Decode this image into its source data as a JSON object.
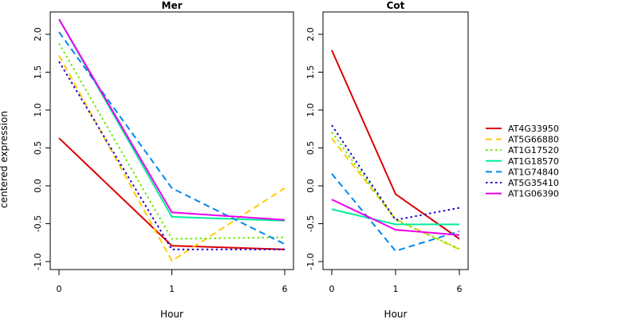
{
  "chart_data": {
    "type": "line",
    "ylabel": "centered expression",
    "xlabel": "Hour",
    "x_ticks": [
      "0",
      "1",
      "6"
    ],
    "ylim": [
      -1.0,
      2.2
    ],
    "y_ticks": [
      "-1.0",
      "-0.5",
      "0.0",
      "0.5",
      "1.0",
      "1.5",
      "2.0"
    ],
    "legend_position": "right",
    "series_styles": [
      {
        "name": "AT4G33950",
        "color": "#dd0000",
        "dash": "solid"
      },
      {
        "name": "AT5G66880",
        "color": "#ffcc00",
        "dash": "dashed"
      },
      {
        "name": "AT1G17520",
        "color": "#66ee00",
        "dash": "dotted"
      },
      {
        "name": "AT1G18570",
        "color": "#00ee99",
        "dash": "solid"
      },
      {
        "name": "AT1G74840",
        "color": "#0088ee",
        "dash": "dashed"
      },
      {
        "name": "AT5G35410",
        "color": "#2200cc",
        "dash": "dotted"
      },
      {
        "name": "AT1G06390",
        "color": "#ee00ee",
        "dash": "solid"
      }
    ],
    "panels": [
      {
        "title": "Mer",
        "series": [
          {
            "name": "AT4G33950",
            "values": [
              0.63,
              -0.79,
              -0.84
            ]
          },
          {
            "name": "AT5G66880",
            "values": [
              1.72,
              -0.99,
              -0.03
            ]
          },
          {
            "name": "AT1G17520",
            "values": [
              1.88,
              -0.7,
              -0.68
            ]
          },
          {
            "name": "AT1G18570",
            "values": [
              2.2,
              -0.41,
              -0.46
            ]
          },
          {
            "name": "AT1G74840",
            "values": [
              2.03,
              -0.03,
              -0.77
            ]
          },
          {
            "name": "AT5G35410",
            "values": [
              1.64,
              -0.84,
              -0.84
            ]
          },
          {
            "name": "AT1G06390",
            "values": [
              2.2,
              -0.35,
              -0.45
            ]
          }
        ]
      },
      {
        "title": "Cot",
        "series": [
          {
            "name": "AT4G33950",
            "values": [
              1.79,
              -0.11,
              -0.7
            ]
          },
          {
            "name": "AT5G66880",
            "values": [
              0.63,
              -0.44,
              -0.84
            ]
          },
          {
            "name": "AT1G17520",
            "values": [
              0.71,
              -0.45,
              -0.83
            ]
          },
          {
            "name": "AT1G18570",
            "values": [
              -0.31,
              -0.51,
              -0.51
            ]
          },
          {
            "name": "AT1G74840",
            "values": [
              0.16,
              -0.86,
              -0.6
            ]
          },
          {
            "name": "AT5G35410",
            "values": [
              0.8,
              -0.45,
              -0.29
            ]
          },
          {
            "name": "AT1G06390",
            "values": [
              -0.18,
              -0.58,
              -0.65
            ]
          }
        ]
      }
    ]
  }
}
